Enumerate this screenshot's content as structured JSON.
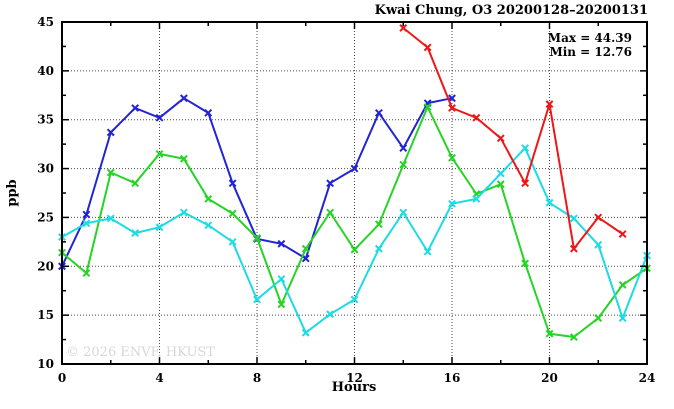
{
  "chart_data": {
    "type": "line",
    "title": "Kwai Chung, O3 20200128–20200131",
    "xlabel": "Hours",
    "ylabel": "ppb",
    "xlim": [
      0,
      24
    ],
    "ylim": [
      10,
      45
    ],
    "x_major_ticks": [
      0,
      4,
      8,
      12,
      16,
      20,
      24
    ],
    "x_minor_step": 2,
    "y_major_ticks": [
      10,
      15,
      20,
      25,
      30,
      35,
      40,
      45
    ],
    "y_minor_step": 2.5,
    "grid": "dotted-at-major-ticks",
    "legend_position": "none",
    "annotations": {
      "max_label": "Max = 44.39",
      "min_label": "Min = 12.76"
    },
    "watermark": "© 2026 ENVF, HKUST",
    "series": [
      {
        "name": "blue-line",
        "color": "#2323d6",
        "marker": "x",
        "points": [
          [
            0,
            20.0
          ],
          [
            1,
            25.3
          ],
          [
            2,
            33.7
          ],
          [
            3,
            36.2
          ],
          [
            4,
            35.2
          ],
          [
            5,
            37.2
          ],
          [
            6,
            35.7
          ],
          [
            7,
            28.5
          ],
          [
            8,
            22.8
          ],
          [
            9,
            22.3
          ],
          [
            10,
            20.8
          ],
          [
            11,
            28.5
          ],
          [
            12,
            30.0
          ],
          [
            13,
            35.7
          ],
          [
            14,
            32.1
          ],
          [
            15,
            36.7
          ],
          [
            16,
            37.2
          ]
        ]
      },
      {
        "name": "green-line",
        "color": "#25d425",
        "marker": "x",
        "points": [
          [
            0,
            21.4
          ],
          [
            1,
            19.3
          ],
          [
            2,
            29.6
          ],
          [
            3,
            28.5
          ],
          [
            4,
            31.5
          ],
          [
            5,
            31.0
          ],
          [
            6,
            26.9
          ],
          [
            7,
            25.4
          ],
          [
            8,
            22.9
          ],
          [
            9,
            16.1
          ],
          [
            10,
            21.8
          ],
          [
            11,
            25.5
          ],
          [
            12,
            21.7
          ],
          [
            13,
            24.3
          ],
          [
            14,
            30.4
          ],
          [
            15,
            36.3
          ],
          [
            16,
            31.1
          ],
          [
            17,
            27.4
          ],
          [
            18,
            28.4
          ],
          [
            19,
            20.3
          ],
          [
            20,
            13.1
          ],
          [
            21,
            12.76
          ],
          [
            22,
            14.7
          ],
          [
            23,
            18.1
          ],
          [
            24,
            19.8
          ]
        ]
      },
      {
        "name": "cyan-line",
        "color": "#1cdbe3",
        "marker": "x",
        "points": [
          [
            0,
            23.0
          ],
          [
            1,
            24.4
          ],
          [
            2,
            24.9
          ],
          [
            3,
            23.4
          ],
          [
            4,
            24.0
          ],
          [
            5,
            25.5
          ],
          [
            6,
            24.2
          ],
          [
            7,
            22.5
          ],
          [
            8,
            16.6
          ],
          [
            9,
            18.7
          ],
          [
            10,
            13.2
          ],
          [
            11,
            15.1
          ],
          [
            12,
            16.6
          ],
          [
            13,
            21.8
          ],
          [
            14,
            25.5
          ],
          [
            15,
            21.5
          ],
          [
            16,
            26.4
          ],
          [
            17,
            26.9
          ],
          [
            18,
            29.5
          ],
          [
            19,
            32.1
          ],
          [
            20,
            26.5
          ],
          [
            21,
            24.9
          ],
          [
            22,
            22.2
          ],
          [
            23,
            14.7
          ],
          [
            24,
            21.1
          ]
        ]
      },
      {
        "name": "red-line",
        "color": "#ee1616",
        "marker": "x",
        "points": [
          [
            14,
            44.39
          ],
          [
            15,
            42.4
          ],
          [
            16,
            36.2
          ],
          [
            17,
            35.2
          ],
          [
            18,
            33.1
          ],
          [
            19,
            28.5
          ],
          [
            20,
            36.6
          ],
          [
            21,
            21.8
          ],
          [
            22,
            25.0
          ],
          [
            23,
            23.3
          ]
        ]
      }
    ]
  }
}
